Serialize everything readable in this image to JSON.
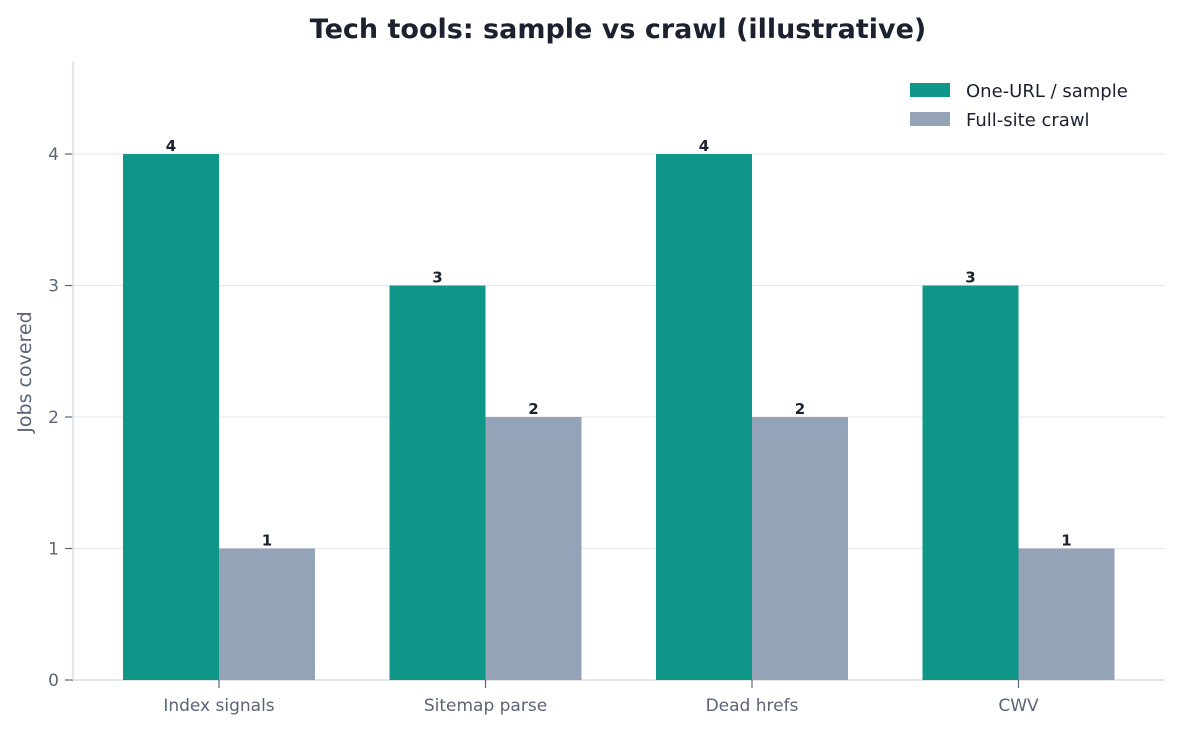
{
  "chart_data": {
    "type": "bar",
    "title": "Tech tools: sample vs crawl (illustrative)",
    "xlabel": "",
    "ylabel": "Jobs covered",
    "categories": [
      "Index signals",
      "Sitemap parse",
      "Dead hrefs",
      "CWV"
    ],
    "series": [
      {
        "name": "One-URL / sample",
        "values": [
          4,
          3,
          4,
          3
        ],
        "color": "#0e9688"
      },
      {
        "name": "Full-site crawl",
        "values": [
          1,
          2,
          2,
          1
        ],
        "color": "#95a3b9"
      }
    ],
    "ylim": [
      0,
      4.7
    ],
    "yticks": [
      0,
      1,
      2,
      3,
      4
    ],
    "grid": "horizontal",
    "legend_position": "top-right",
    "data_labels": true
  },
  "colors": {
    "axis": "#d9dde4",
    "grid": "#e6e9ee",
    "title": "#1c2130",
    "tick_text": "#5c6478"
  }
}
